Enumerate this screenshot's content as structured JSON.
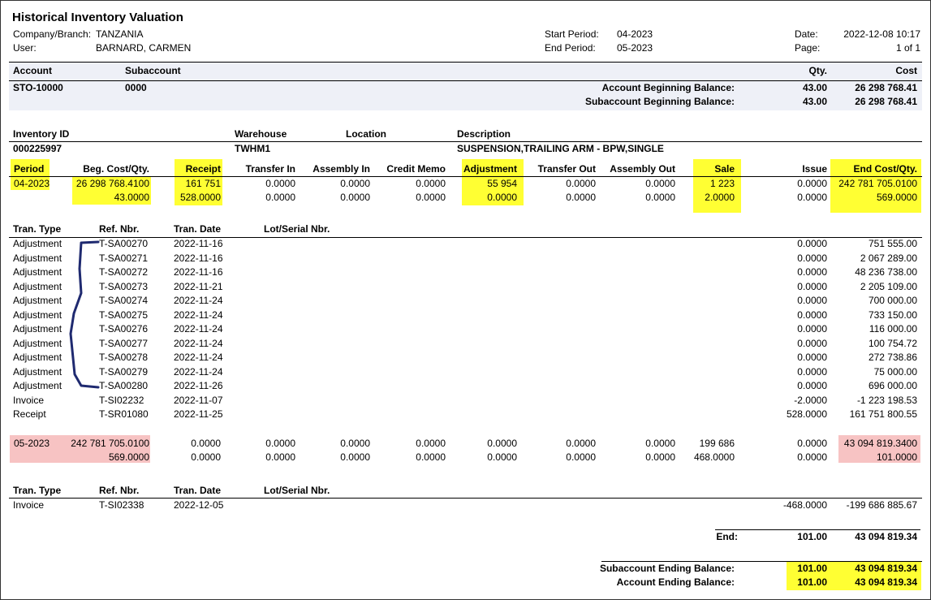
{
  "report": {
    "title": "Historical Inventory Valuation",
    "company_label": "Company/Branch:",
    "company": "TANZANIA",
    "user_label": "User:",
    "user": "BARNARD, CARMEN",
    "start_label": "Start Period:",
    "start": "04-2023",
    "end_label": "End Period:",
    "end": "05-2023",
    "date_label": "Date:",
    "date": "2022-12-08 10:17",
    "page_label": "Page:",
    "page": "1 of 1"
  },
  "account_section": {
    "headers": {
      "account": "Account",
      "subaccount": "Subaccount",
      "qty": "Qty.",
      "cost": "Cost"
    },
    "account": "STO-10000",
    "subaccount": "0000",
    "acct_beg_label": "Account Beginning Balance:",
    "acct_beg_qty": "43.00",
    "acct_beg_cost": "26 298 768.41",
    "sub_beg_label": "Subaccount Beginning Balance:",
    "sub_beg_qty": "43.00",
    "sub_beg_cost": "26 298 768.41"
  },
  "item": {
    "headers": {
      "inventory_id": "Inventory ID",
      "warehouse": "Warehouse",
      "location": "Location",
      "description": "Description"
    },
    "inventory_id": "000225997",
    "warehouse": "TWHM1",
    "description": "SUSPENSION,TRAILING ARM - BPW,SINGLE"
  },
  "period_headers": [
    "Period",
    "Beg. Cost/Qty.",
    "Receipt",
    "Transfer In",
    "Assembly In",
    "Credit Memo",
    "Adjustment",
    "Transfer Out",
    "Assembly Out",
    "Sale",
    "Issue",
    "End Cost/Qty."
  ],
  "periods": [
    {
      "cost_row": [
        "04-2023",
        "26 298 768.4100",
        "161 751",
        "0.0000",
        "0.0000",
        "0.0000",
        "55 954",
        "0.0000",
        "0.0000",
        "1 223",
        "0.0000",
        "242 781 705.0100"
      ],
      "qty_row": [
        "",
        "43.0000",
        "528.0000",
        "0.0000",
        "0.0000",
        "0.0000",
        "0.0000",
        "0.0000",
        "0.0000",
        "2.0000",
        "0.0000",
        "569.0000"
      ]
    },
    {
      "cost_row": [
        "05-2023",
        "242 781 705.0100",
        "0.0000",
        "0.0000",
        "0.0000",
        "0.0000",
        "0.0000",
        "0.0000",
        "0.0000",
        "199 686",
        "0.0000",
        "43 094 819.3400"
      ],
      "qty_row": [
        "",
        "569.0000",
        "0.0000",
        "0.0000",
        "0.0000",
        "0.0000",
        "0.0000",
        "0.0000",
        "0.0000",
        "468.0000",
        "0.0000",
        "101.0000"
      ]
    }
  ],
  "tran_headers": [
    "Tran. Type",
    "Ref. Nbr.",
    "Tran. Date",
    "Lot/Serial Nbr."
  ],
  "transactions_1": [
    [
      "Adjustment",
      "T-SA00270",
      "2022-11-16",
      "0.0000",
      "751 555.00"
    ],
    [
      "Adjustment",
      "T-SA00271",
      "2022-11-16",
      "0.0000",
      "2 067 289.00"
    ],
    [
      "Adjustment",
      "T-SA00272",
      "2022-11-16",
      "0.0000",
      "48 236 738.00"
    ],
    [
      "Adjustment",
      "T-SA00273",
      "2022-11-21",
      "0.0000",
      "2 205 109.00"
    ],
    [
      "Adjustment",
      "T-SA00274",
      "2022-11-24",
      "0.0000",
      "700 000.00"
    ],
    [
      "Adjustment",
      "T-SA00275",
      "2022-11-24",
      "0.0000",
      "733 150.00"
    ],
    [
      "Adjustment",
      "T-SA00276",
      "2022-11-24",
      "0.0000",
      "116 000.00"
    ],
    [
      "Adjustment",
      "T-SA00277",
      "2022-11-24",
      "0.0000",
      "100 754.72"
    ],
    [
      "Adjustment",
      "T-SA00278",
      "2022-11-24",
      "0.0000",
      "272 738.86"
    ],
    [
      "Adjustment",
      "T-SA00279",
      "2022-11-24",
      "0.0000",
      "75 000.00"
    ],
    [
      "Adjustment",
      "T-SA00280",
      "2022-11-26",
      "0.0000",
      "696 000.00"
    ],
    [
      "Invoice",
      "T-SI02232",
      "2022-11-07",
      "-2.0000",
      "-1 223 198.53"
    ],
    [
      "Receipt",
      "T-SR01080",
      "2022-11-25",
      "528.0000",
      "161 751 800.55"
    ]
  ],
  "transactions_2": [
    [
      "Invoice",
      "T-SI02338",
      "2022-12-05",
      "-468.0000",
      "-199 686 885.67"
    ]
  ],
  "totals": {
    "end_label": "End:",
    "end_qty": "101.00",
    "end_cost": "43 094 819.34",
    "sub_end_label": "Subaccount Ending Balance:",
    "sub_end_qty": "101.00",
    "sub_end_cost": "43 094 819.34",
    "acct_end_label": "Account Ending Balance:",
    "acct_end_qty": "101.00",
    "acct_end_cost": "43 094 819.34"
  },
  "colors": {
    "highlight": "#ffff33",
    "pink": "#f7c3c3",
    "band": "#eef0f7",
    "bracket": "#1f2a70"
  }
}
